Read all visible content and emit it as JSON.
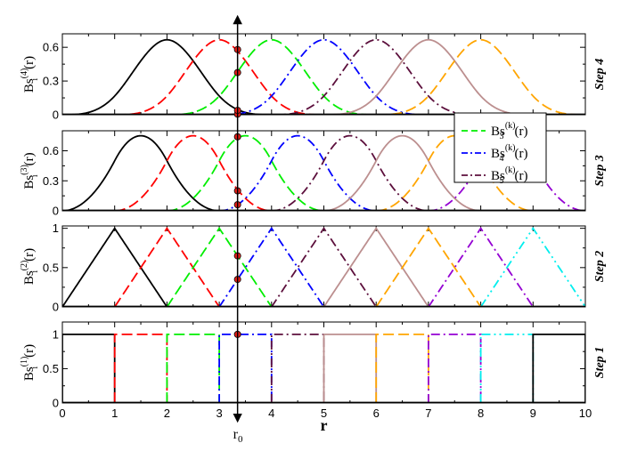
{
  "chart_data": {
    "type": "line",
    "xlabel": "r",
    "xlim": [
      0,
      10
    ],
    "x_ticks": [
      "0",
      "1",
      "2",
      "3",
      "4",
      "5",
      "6",
      "7",
      "8",
      "9",
      "10"
    ],
    "knots": [
      0,
      1,
      2,
      3,
      4,
      5,
      6,
      7,
      8,
      9,
      10
    ],
    "r0": 3.35,
    "r0_label": "r",
    "r0_sub": "0",
    "colors": [
      "#000000",
      "#ff0000",
      "#00ee00",
      "#0000ff",
      "#5c0f3c",
      "#bc8f8f",
      "#ffa500",
      "#9400d3",
      "#00eeee"
    ],
    "dash_styles": [
      "solid",
      "dash",
      "dash",
      "dashdot",
      "dashdot",
      "solid",
      "dash",
      "dashdot",
      "dashdotdot"
    ],
    "panels": [
      {
        "step": "Step 4",
        "order": 4,
        "ylabel_main": "Bs",
        "ylabel_sup": "(4)",
        "ylabel_i": "i",
        "ylabel_tail": "(r)",
        "ylim": [
          0,
          0.72
        ],
        "yticks": [
          "0",
          "0.3",
          "0.6"
        ],
        "ytick_values": [
          0,
          0.3,
          0.6
        ],
        "intersections": [
          0.006,
          0.039,
          0.58,
          0.375
        ]
      },
      {
        "step": "Step 3",
        "order": 3,
        "ylabel_main": "Bs",
        "ylabel_sup": "(3)",
        "ylabel_i": "i",
        "ylabel_tail": "(r)",
        "ylim": [
          0,
          0.8
        ],
        "yticks": [
          "0",
          "0.3",
          "0.6"
        ],
        "ytick_values": [
          0,
          0.3,
          0.6
        ],
        "intersections": [
          0.061,
          0.2,
          0.74
        ]
      },
      {
        "step": "Step 2",
        "order": 2,
        "ylabel_main": "Bs",
        "ylabel_sup": "(2)",
        "ylabel_i": "i",
        "ylabel_tail": "(r)",
        "ylim": [
          0,
          1.03
        ],
        "yticks": [
          "0",
          "0.5",
          "1"
        ],
        "ytick_values": [
          0,
          0.5,
          1
        ],
        "intersections": [
          0.35,
          0.65
        ]
      },
      {
        "step": "Step 1",
        "order": 1,
        "ylabel_main": "Bs",
        "ylabel_sup": "(1)",
        "ylabel_i": "i",
        "ylabel_tail": "(r)",
        "ylim": [
          0,
          1.18
        ],
        "yticks": [
          "0",
          "0.5",
          "1"
        ],
        "ytick_values": [
          0,
          0.5,
          1
        ],
        "intersections": [
          1.0
        ]
      }
    ],
    "legend": {
      "placement": "top-right of Step 3 panel",
      "entries": [
        {
          "main": "Bs",
          "sup": "(k)",
          "sub": "3",
          "tail": "(r)",
          "color": "#00ee00",
          "dash": "dash"
        },
        {
          "main": "Bs",
          "sup": "(k)",
          "sub": "4",
          "tail": "(r)",
          "color": "#0000ff",
          "dash": "dashdot"
        },
        {
          "main": "Bs",
          "sup": "(k)",
          "sub": "5",
          "tail": "(r)",
          "color": "#5c0f3c",
          "dash": "dashdot"
        }
      ]
    },
    "marker_color": "#e8201a"
  }
}
